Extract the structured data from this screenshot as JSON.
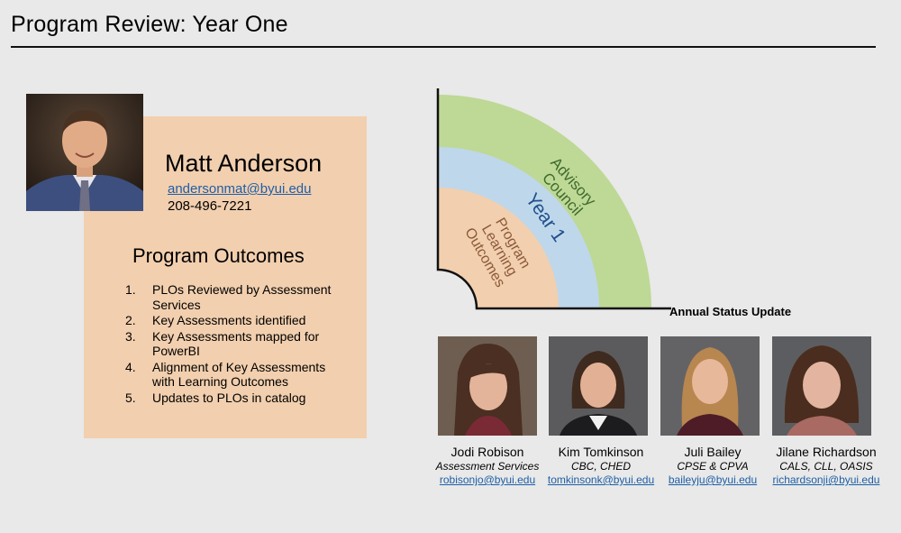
{
  "header": {
    "title": "Program Review: Year One"
  },
  "lead": {
    "name": "Matt Anderson",
    "email": "andersonmat@byui.edu",
    "phone": "208-496-7221"
  },
  "outcomes": {
    "title": "Program Outcomes",
    "items": [
      {
        "num": "1.",
        "text": "PLOs Reviewed by Assessment Services"
      },
      {
        "num": "2.",
        "text": "Key Assessments identified"
      },
      {
        "num": "3.",
        "text": "Key Assessments mapped for PowerBI"
      },
      {
        "num": "4.",
        "text": "Alignment of Key Assessments with Learning Outcomes"
      },
      {
        "num": "5.",
        "text": "Updates to PLOs in catalog"
      }
    ]
  },
  "diagram": {
    "outer_label_1": "Advisory",
    "outer_label_2": "Council",
    "middle_label": "Year 1",
    "inner_label_1": "Program",
    "inner_label_2": "Learning",
    "inner_label_3": "Outcomes",
    "status_label": "Annual Status Update",
    "colors": {
      "outer": "#bed896",
      "middle": "#bfd7ea",
      "inner": "#f2cfae",
      "axis": "#111111"
    }
  },
  "team": [
    {
      "name": "Jodi Robison",
      "role": "Assessment Services",
      "email": "robisonjo@byui.edu"
    },
    {
      "name": "Kim Tomkinson",
      "role": "CBC, CHED",
      "email": "tomkinsonk@byui.edu"
    },
    {
      "name": "Juli Bailey",
      "role": "CPSE & CPVA",
      "email": "baileyju@byui.edu"
    },
    {
      "name": "Jilane Richardson",
      "role": "CALS, CLL, OASIS",
      "email": "richardsonji@byui.edu"
    }
  ]
}
